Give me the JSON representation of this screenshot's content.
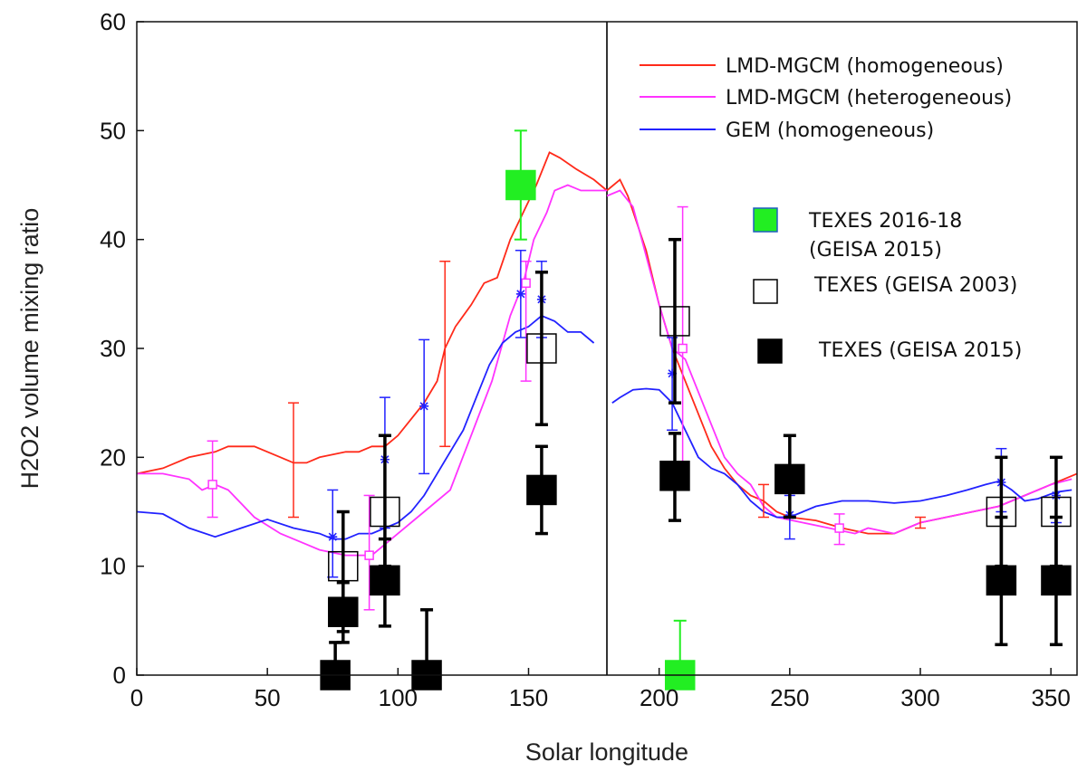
{
  "chart_data": {
    "type": "line",
    "title": "",
    "xlabel": "Solar longitude",
    "ylabel": "H2O2 volume mixing ratio",
    "xlim": [
      0,
      360
    ],
    "ylim": [
      0,
      60
    ],
    "xticks": [
      0,
      50,
      100,
      150,
      200,
      250,
      300,
      350
    ],
    "yticks": [
      0,
      10,
      20,
      30,
      40,
      50,
      60
    ],
    "vline_x": 180,
    "grid": false,
    "legend_placement": "top-right",
    "series": [
      {
        "name": "LMD-MGCM (homogeneous)",
        "color": "#ff2a1a",
        "segments": [
          [
            [
              0,
              18.5
            ],
            [
              10,
              19
            ],
            [
              20,
              20
            ],
            [
              30,
              20.5
            ],
            [
              35,
              21
            ],
            [
              45,
              21
            ],
            [
              55,
              20
            ],
            [
              60,
              19.5
            ],
            [
              65,
              19.5
            ],
            [
              70,
              20
            ],
            [
              80,
              20.5
            ],
            [
              85,
              20.5
            ],
            [
              90,
              21
            ],
            [
              95,
              21
            ],
            [
              100,
              22
            ],
            [
              105,
              23.5
            ],
            [
              110,
              25
            ],
            [
              115,
              27
            ],
            [
              118,
              30
            ],
            [
              122,
              32
            ],
            [
              128,
              34
            ],
            [
              133,
              36
            ],
            [
              138,
              36.5
            ],
            [
              143,
              40
            ],
            [
              148,
              42.5
            ],
            [
              153,
              45
            ],
            [
              158,
              48
            ],
            [
              162,
              47.5
            ],
            [
              168,
              46.5
            ],
            [
              175,
              45.5
            ],
            [
              180,
              44.5
            ]
          ],
          [
            [
              180,
              44.5
            ],
            [
              185,
              45.5
            ],
            [
              188,
              44
            ],
            [
              195,
              39
            ],
            [
              200,
              34
            ],
            [
              205,
              30
            ],
            [
              210,
              27
            ],
            [
              215,
              24
            ],
            [
              220,
              21
            ],
            [
              225,
              19
            ],
            [
              230,
              17.5
            ],
            [
              235,
              16.5
            ],
            [
              240,
              16
            ],
            [
              245,
              15
            ],
            [
              250,
              14.5
            ],
            [
              260,
              14.2
            ],
            [
              270,
              13.5
            ],
            [
              280,
              13
            ],
            [
              290,
              13
            ],
            [
              300,
              14
            ],
            [
              310,
              14.5
            ],
            [
              320,
              15
            ],
            [
              330,
              15.5
            ],
            [
              340,
              16.5
            ],
            [
              350,
              17.5
            ],
            [
              360,
              18.5
            ]
          ]
        ],
        "error_bars": [
          {
            "x": 60,
            "y": 19.5,
            "low": 14.5,
            "high": 25
          },
          {
            "x": 118,
            "y": 30,
            "low": 21,
            "high": 38
          },
          {
            "x": 240,
            "y": 16,
            "low": 14.5,
            "high": 17.5
          },
          {
            "x": 300,
            "y": 14,
            "low": 13.5,
            "high": 14.5
          }
        ]
      },
      {
        "name": "LMD-MGCM (heterogeneous)",
        "color": "#ff33ff",
        "segments": [
          [
            [
              0,
              18.5
            ],
            [
              10,
              18.5
            ],
            [
              20,
              18
            ],
            [
              25,
              17
            ],
            [
              30,
              17.5
            ],
            [
              35,
              17
            ],
            [
              45,
              14.5
            ],
            [
              55,
              13
            ],
            [
              65,
              12
            ],
            [
              70,
              11.5
            ],
            [
              80,
              11
            ],
            [
              90,
              11
            ],
            [
              95,
              12
            ],
            [
              100,
              13
            ],
            [
              110,
              15
            ],
            [
              120,
              17
            ],
            [
              128,
              22
            ],
            [
              136,
              27
            ],
            [
              143,
              33
            ],
            [
              148,
              36
            ],
            [
              152,
              40
            ],
            [
              157,
              42.5
            ],
            [
              160,
              44.5
            ],
            [
              165,
              45
            ],
            [
              170,
              44.5
            ],
            [
              180,
              44.5
            ]
          ],
          [
            [
              180,
              44
            ],
            [
              185,
              44.5
            ],
            [
              190,
              43
            ],
            [
              195,
              38.5
            ],
            [
              200,
              34
            ],
            [
              205,
              30
            ],
            [
              210,
              29
            ],
            [
              215,
              26
            ],
            [
              220,
              23
            ],
            [
              225,
              20
            ],
            [
              230,
              18.5
            ],
            [
              235,
              17.5
            ],
            [
              240,
              15.5
            ],
            [
              245,
              14.5
            ],
            [
              255,
              14
            ],
            [
              265,
              13.5
            ],
            [
              275,
              13
            ],
            [
              280,
              13.5
            ],
            [
              290,
              13
            ],
            [
              300,
              14
            ],
            [
              310,
              14.5
            ],
            [
              320,
              15
            ],
            [
              330,
              15.5
            ],
            [
              340,
              16.5
            ],
            [
              350,
              17.5
            ],
            [
              358,
              18
            ]
          ]
        ],
        "markers": [
          {
            "x": 29,
            "y": 17.5,
            "low": 14.5,
            "high": 21.5
          },
          {
            "x": 89,
            "y": 11,
            "low": 6,
            "high": 16.5
          },
          {
            "x": 149,
            "y": 36,
            "low": 27,
            "high": 38
          },
          {
            "x": 209,
            "y": 30,
            "low": 17,
            "high": 43
          },
          {
            "x": 269,
            "y": 13.5,
            "low": 12,
            "high": 14.8
          }
        ]
      },
      {
        "name": "GEM (homogeneous)",
        "color": "#2222ff",
        "segments": [
          [
            [
              0,
              15
            ],
            [
              10,
              14.8
            ],
            [
              20,
              13.5
            ],
            [
              30,
              12.7
            ],
            [
              40,
              13.5
            ],
            [
              50,
              14.3
            ],
            [
              60,
              13.5
            ],
            [
              70,
              13
            ],
            [
              75,
              12.5
            ],
            [
              80,
              12.5
            ],
            [
              85,
              13
            ],
            [
              90,
              13
            ],
            [
              95,
              13.5
            ],
            [
              100,
              14
            ],
            [
              105,
              15
            ],
            [
              110,
              16.5
            ],
            [
              115,
              18.5
            ],
            [
              120,
              20.5
            ],
            [
              125,
              22.5
            ],
            [
              130,
              25.5
            ],
            [
              135,
              28.5
            ],
            [
              140,
              30.5
            ],
            [
              145,
              31.5
            ],
            [
              150,
              32
            ],
            [
              155,
              33
            ],
            [
              160,
              32.5
            ],
            [
              165,
              31.5
            ],
            [
              170,
              31.5
            ],
            [
              175,
              30.5
            ]
          ],
          [
            [
              182,
              25
            ],
            [
              185,
              25.5
            ],
            [
              190,
              26.2
            ],
            [
              195,
              26.3
            ],
            [
              200,
              26.2
            ],
            [
              205,
              25
            ],
            [
              210,
              22.5
            ],
            [
              215,
              20
            ],
            [
              220,
              19
            ],
            [
              225,
              18.5
            ],
            [
              230,
              17.5
            ],
            [
              235,
              16
            ],
            [
              240,
              15
            ],
            [
              245,
              14.5
            ],
            [
              250,
              14.5
            ],
            [
              255,
              15
            ],
            [
              260,
              15.5
            ],
            [
              270,
              16
            ],
            [
              280,
              16
            ],
            [
              290,
              15.8
            ],
            [
              300,
              16
            ],
            [
              310,
              16.5
            ],
            [
              318,
              17
            ],
            [
              325,
              17.5
            ],
            [
              330,
              17.8
            ],
            [
              335,
              17
            ],
            [
              340,
              16
            ],
            [
              345,
              16.2
            ],
            [
              352,
              16.8
            ],
            [
              358,
              17
            ]
          ]
        ],
        "markers": [
          {
            "x": 75,
            "y": 12.7,
            "low": 9,
            "high": 17
          },
          {
            "x": 95,
            "y": 19.8,
            "low": 13.5,
            "high": 25.5
          },
          {
            "x": 110,
            "y": 24.7,
            "low": 18.5,
            "high": 30.8
          },
          {
            "x": 147,
            "y": 35,
            "low": 31,
            "high": 39
          },
          {
            "x": 155,
            "y": 34.5,
            "low": 31,
            "high": 38
          },
          {
            "x": 205,
            "y": 27.7,
            "low": 22.5,
            "high": 31
          },
          {
            "x": 250,
            "y": 14.7,
            "low": 12.5,
            "high": 16.5
          },
          {
            "x": 331,
            "y": 17.7,
            "low": 15,
            "high": 20.8
          },
          {
            "x": 352,
            "y": 16.5,
            "low": 14,
            "high": 20
          }
        ]
      }
    ],
    "observations": [
      {
        "name": "TEXES 2016-18",
        "name_line2": "(GEISA 2015)",
        "style": "filled-green",
        "color": "#22ee22",
        "points": [
          {
            "x": 147,
            "y": 45,
            "low": 40,
            "high": 50
          },
          {
            "x": 208,
            "y": 0,
            "low": 0,
            "high": 5
          }
        ]
      },
      {
        "name": "TEXES (GEISA 2003)",
        "style": "open-black",
        "color": "#000000",
        "points": [
          {
            "x": 79,
            "y": 10,
            "low": 4,
            "high": 15
          },
          {
            "x": 95,
            "y": 15,
            "low": 10,
            "high": 22
          },
          {
            "x": 155,
            "y": 30,
            "low": 23,
            "high": 37
          },
          {
            "x": 206,
            "y": 32.5,
            "low": 25,
            "high": 40
          },
          {
            "x": 331,
            "y": 15,
            "low": 10,
            "high": 20
          },
          {
            "x": 352,
            "y": 15,
            "low": 10,
            "high": 20
          }
        ]
      },
      {
        "name": "TEXES (GEISA 2015)",
        "style": "filled-black",
        "color": "#000000",
        "points": [
          {
            "x": 76,
            "y": 0,
            "low": 0,
            "high": 3
          },
          {
            "x": 79,
            "y": 5.8,
            "low": 3,
            "high": 8.5
          },
          {
            "x": 95,
            "y": 8.7,
            "low": 4.5,
            "high": 12.5
          },
          {
            "x": 111,
            "y": 0,
            "low": 0,
            "high": 6
          },
          {
            "x": 155,
            "y": 17,
            "low": 13,
            "high": 21
          },
          {
            "x": 206,
            "y": 18.3,
            "low": 14.2,
            "high": 22.2
          },
          {
            "x": 250,
            "y": 18,
            "low": 14.5,
            "high": 22
          },
          {
            "x": 331,
            "y": 8.7,
            "low": 2.8,
            "high": 14.5
          },
          {
            "x": 352,
            "y": 8.7,
            "low": 2.8,
            "high": 14.5
          }
        ]
      }
    ]
  }
}
